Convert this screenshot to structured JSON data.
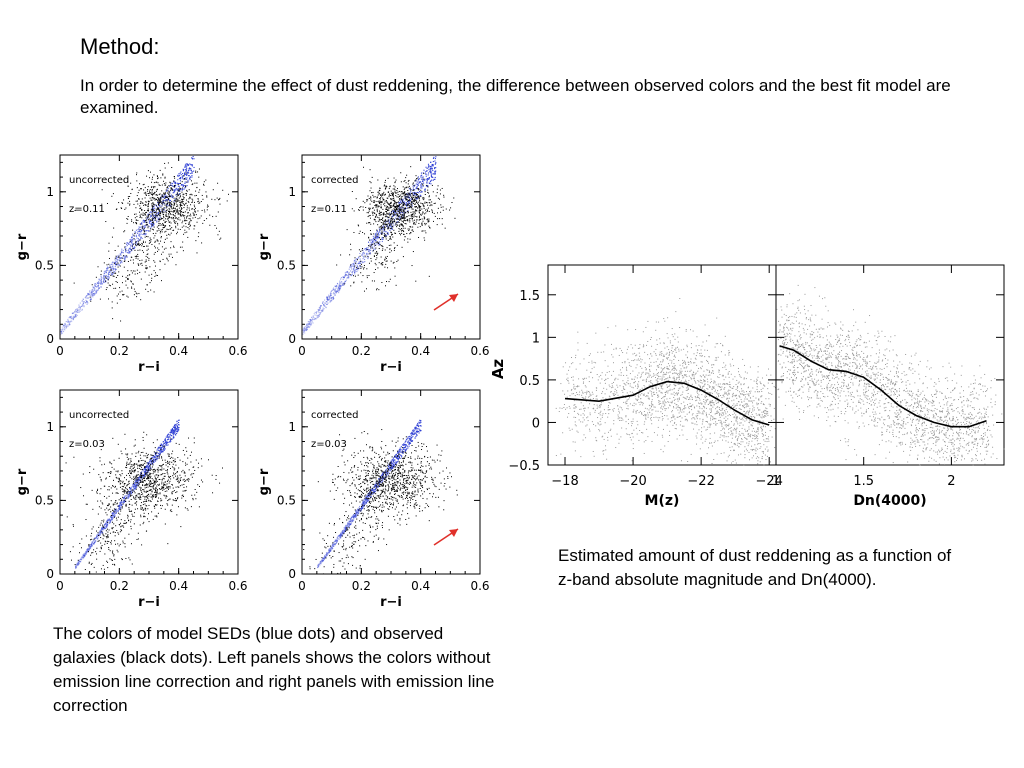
{
  "title": "Method:",
  "intro": "In order to determine the effect of dust reddening, the difference between observed colors and the best fit model are examined.",
  "caption_left": "The colors of model SEDs (blue dots) and observed galaxies (black dots). Left panels shows the colors without emission line correction and right panels with emission line correction",
  "caption_right": "Estimated amount of dust reddening as a function of z-band absolute magnitude and Dn(4000).",
  "colors": {
    "model_points": "#2e3fd4",
    "observed_points": "#000000",
    "arrow": "#e0302a",
    "curve": "#000000"
  },
  "chart_data": [
    {
      "type": "scatter",
      "panel_label": "uncorrected",
      "redshift_label": "z=0.11",
      "xlabel": "r−i",
      "ylabel": "g−r",
      "xlim": [
        0,
        0.6
      ],
      "ylim": [
        0,
        1.25
      ],
      "xticks": [
        "0",
        "0.2",
        "0.4",
        "0.6"
      ],
      "yticks": [
        "0",
        "0.5",
        "1"
      ],
      "series": [
        {
          "color": "#2e3fd4",
          "band": {
            "x": [
              0.0,
              0.45
            ],
            "y": [
              0.05,
              1.18
            ],
            "width": 0.12
          }
        },
        {
          "color": "#000000",
          "cloud": {
            "center": [
              0.36,
              0.9
            ],
            "spread": [
              0.07,
              0.17
            ],
            "tail_to": [
              0.2,
              0.3
            ]
          }
        }
      ],
      "arrow": false
    },
    {
      "type": "scatter",
      "panel_label": "corrected",
      "redshift_label": "z=0.11",
      "xlabel": "r−i",
      "ylabel": "g−r",
      "xlim": [
        0,
        0.6
      ],
      "ylim": [
        0,
        1.25
      ],
      "xticks": [
        "0",
        "0.2",
        "0.4",
        "0.6"
      ],
      "yticks": [
        "0",
        "0.5",
        "1"
      ],
      "series": [
        {
          "color": "#2e3fd4",
          "band": {
            "x": [
              0.0,
              0.45
            ],
            "y": [
              0.05,
              1.18
            ],
            "width": 0.12
          }
        },
        {
          "color": "#000000",
          "cloud": {
            "center": [
              0.33,
              0.9
            ],
            "spread": [
              0.06,
              0.15
            ],
            "tail_to": [
              0.22,
              0.45
            ]
          }
        }
      ],
      "arrow": true
    },
    {
      "type": "scatter",
      "panel_label": "uncorrected",
      "redshift_label": "z=0.03",
      "xlabel": "r−i",
      "ylabel": "g−r",
      "xlim": [
        0,
        0.6
      ],
      "ylim": [
        0,
        1.25
      ],
      "xticks": [
        "0",
        "0.2",
        "0.4",
        "0.6"
      ],
      "yticks": [
        "0",
        "0.5",
        "1"
      ],
      "series": [
        {
          "color": "#2e3fd4",
          "band": {
            "x": [
              0.05,
              0.4
            ],
            "y": [
              0.05,
              1.02
            ],
            "width": 0.06
          }
        },
        {
          "color": "#000000",
          "cloud": {
            "center": [
              0.3,
              0.65
            ],
            "spread": [
              0.08,
              0.18
            ],
            "tail_to": [
              0.1,
              0.1
            ]
          }
        }
      ],
      "arrow": false
    },
    {
      "type": "scatter",
      "panel_label": "corrected",
      "redshift_label": "z=0.03",
      "xlabel": "r−i",
      "ylabel": "g−r",
      "xlim": [
        0,
        0.6
      ],
      "ylim": [
        0,
        1.25
      ],
      "xticks": [
        "0",
        "0.2",
        "0.4",
        "0.6"
      ],
      "yticks": [
        "0",
        "0.5",
        "1"
      ],
      "series": [
        {
          "color": "#2e3fd4",
          "band": {
            "x": [
              0.05,
              0.4
            ],
            "y": [
              0.05,
              1.02
            ],
            "width": 0.06
          }
        },
        {
          "color": "#000000",
          "cloud": {
            "center": [
              0.3,
              0.65
            ],
            "spread": [
              0.08,
              0.18
            ],
            "tail_to": [
              0.1,
              0.1
            ]
          }
        }
      ],
      "arrow": true
    },
    {
      "type": "scatter",
      "xlabel": "M(z)",
      "ylabel": "Az",
      "xlim": [
        -17.5,
        -24.2
      ],
      "ylim": [
        -0.5,
        1.85
      ],
      "xticks": [
        "−18",
        "−20",
        "−22",
        "−24"
      ],
      "yticks": [
        "−0.5",
        "0",
        "0.5",
        "1",
        "1.5"
      ],
      "median_curve": {
        "x": [
          -18,
          -19,
          -20,
          -20.5,
          -21,
          -21.5,
          -22,
          -22.5,
          -23,
          -23.5,
          -24
        ],
        "y": [
          0.28,
          0.25,
          0.32,
          0.42,
          0.48,
          0.46,
          0.38,
          0.27,
          0.14,
          0.03,
          -0.03
        ]
      }
    },
    {
      "type": "scatter",
      "xlabel": "Dn(4000)",
      "ylabel": "Az",
      "xlim": [
        1.0,
        2.3
      ],
      "ylim": [
        -0.5,
        1.85
      ],
      "xticks": [
        "1",
        "1.5",
        "2"
      ],
      "yticks": [
        "−0.5",
        "0",
        "0.5",
        "1",
        "1.5"
      ],
      "median_curve": {
        "x": [
          1.02,
          1.1,
          1.2,
          1.3,
          1.4,
          1.5,
          1.6,
          1.7,
          1.8,
          1.9,
          2.0,
          2.1,
          2.2
        ],
        "y": [
          0.9,
          0.85,
          0.72,
          0.62,
          0.6,
          0.53,
          0.38,
          0.2,
          0.08,
          0.0,
          -0.05,
          -0.05,
          0.02
        ]
      }
    }
  ]
}
